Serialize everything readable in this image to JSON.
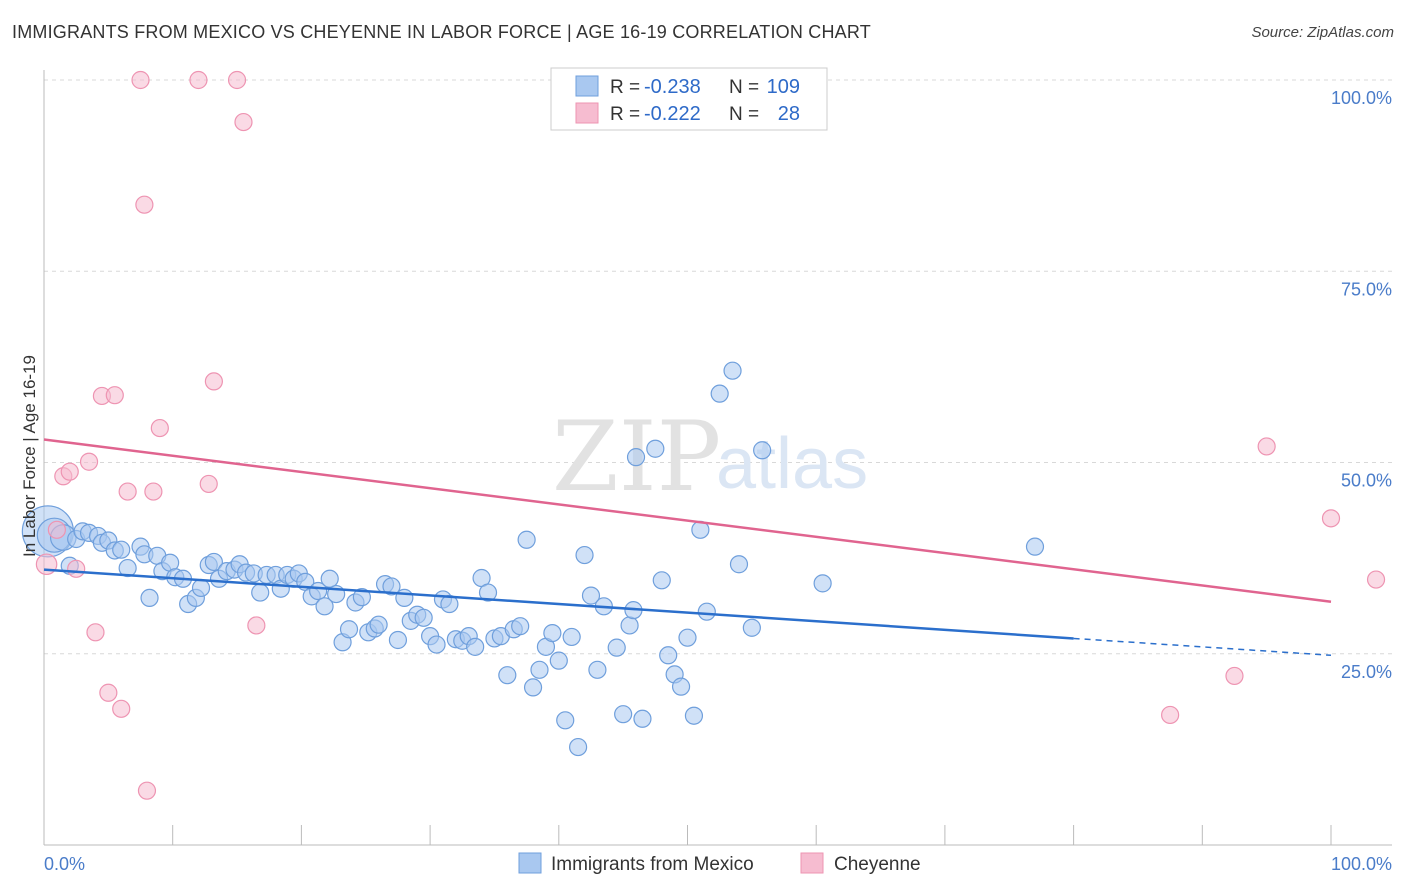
{
  "title": "IMMIGRANTS FROM MEXICO VS CHEYENNE IN LABOR FORCE | AGE 16-19 CORRELATION CHART",
  "source": "Source: ZipAtlas.com",
  "watermark": {
    "zip": "ZIP",
    "atlas": "atlas"
  },
  "colors": {
    "blue_fill": "#a9c8f0",
    "blue_stroke": "#6f9fdc",
    "blue_line": "#2b6fcc",
    "pink_fill": "#f6bcd0",
    "pink_stroke": "#ee94b2",
    "pink_line": "#e0648f",
    "grid": "#d8d8d8",
    "axis_label": "#4a7cc9"
  },
  "legend_box": {
    "rows": [
      {
        "r_label": "R =",
        "r_value": "-0.238",
        "n_label": "N =",
        "n_value": "109",
        "color": "blue"
      },
      {
        "r_label": "R =",
        "r_value": "-0.222",
        "n_label": "N =",
        "n_value": "28",
        "color": "pink"
      }
    ]
  },
  "bottom_legend": [
    {
      "label": "Immigrants from Mexico",
      "color": "blue"
    },
    {
      "label": "Cheyenne",
      "color": "pink"
    }
  ],
  "chart_data": {
    "type": "scatter",
    "title": "IMMIGRANTS FROM MEXICO VS CHEYENNE IN LABOR FORCE | AGE 16-19 CORRELATION CHART",
    "xlabel": "",
    "ylabel": "In Labor Force | Age 16-19",
    "xlim": [
      0,
      100
    ],
    "ylim": [
      0,
      100
    ],
    "x_tick_labels": [
      "0.0%",
      "100.0%"
    ],
    "y_ticks": [
      {
        "value": 25,
        "label": "25.0%"
      },
      {
        "value": 50,
        "label": "50.0%"
      },
      {
        "value": 75,
        "label": "75.0%"
      },
      {
        "value": 100,
        "label": "100.0%"
      }
    ],
    "grid": true,
    "series": [
      {
        "name": "Immigrants from Mexico",
        "color": "blue",
        "r": -0.238,
        "n": 109,
        "trend": {
          "x0": 0,
          "y0": 36.0,
          "x1": 80,
          "y1": 27.0,
          "dashed_to_x": 100,
          "dashed_to_y": 24.8
        },
        "points": [
          [
            0.3,
            41.0,
            3
          ],
          [
            0.8,
            40.5,
            2
          ],
          [
            1.5,
            40.2,
            1.5
          ],
          [
            2.0,
            36.5,
            1
          ],
          [
            2.5,
            40.0,
            1
          ],
          [
            3.0,
            41.0,
            1
          ],
          [
            3.5,
            40.8,
            1
          ],
          [
            4.2,
            40.4,
            1
          ],
          [
            4.5,
            39.5,
            1
          ],
          [
            5.0,
            39.8,
            1
          ],
          [
            5.5,
            38.5,
            1
          ],
          [
            6.0,
            38.6,
            1
          ],
          [
            6.5,
            36.2,
            1
          ],
          [
            7.5,
            39.0,
            1
          ],
          [
            7.8,
            38.0,
            1
          ],
          [
            8.2,
            32.3,
            1
          ],
          [
            8.8,
            37.8,
            1
          ],
          [
            9.2,
            35.8,
            1
          ],
          [
            9.8,
            36.9,
            1
          ],
          [
            10.2,
            35.0,
            1
          ],
          [
            10.8,
            34.8,
            1
          ],
          [
            11.2,
            31.5,
            1
          ],
          [
            11.8,
            32.3,
            1
          ],
          [
            12.2,
            33.6,
            1
          ],
          [
            12.8,
            36.6,
            1
          ],
          [
            13.2,
            37.0,
            1
          ],
          [
            13.6,
            34.8,
            1
          ],
          [
            14.2,
            35.8,
            1
          ],
          [
            14.8,
            36.0,
            1
          ],
          [
            15.2,
            36.7,
            1
          ],
          [
            15.7,
            35.6,
            1
          ],
          [
            16.3,
            35.5,
            1
          ],
          [
            16.8,
            33.0,
            1
          ],
          [
            17.3,
            35.3,
            1
          ],
          [
            18.0,
            35.3,
            1
          ],
          [
            18.4,
            33.5,
            1
          ],
          [
            18.9,
            35.3,
            1
          ],
          [
            19.4,
            34.8,
            1
          ],
          [
            19.8,
            35.5,
            1
          ],
          [
            20.3,
            34.4,
            1
          ],
          [
            20.8,
            32.5,
            1
          ],
          [
            21.3,
            33.2,
            1
          ],
          [
            21.8,
            31.2,
            1
          ],
          [
            22.2,
            34.8,
            1
          ],
          [
            22.7,
            32.8,
            1
          ],
          [
            23.2,
            26.5,
            1
          ],
          [
            23.7,
            28.2,
            1
          ],
          [
            24.2,
            31.7,
            1
          ],
          [
            24.7,
            32.4,
            1
          ],
          [
            25.2,
            27.8,
            1
          ],
          [
            25.7,
            28.3,
            1
          ],
          [
            26.0,
            28.8,
            1
          ],
          [
            26.5,
            34.1,
            1
          ],
          [
            27.0,
            33.8,
            1
          ],
          [
            27.5,
            26.8,
            1
          ],
          [
            28.0,
            32.3,
            1
          ],
          [
            28.5,
            29.3,
            1
          ],
          [
            29.0,
            30.1,
            1
          ],
          [
            29.5,
            29.7,
            1
          ],
          [
            30.0,
            27.3,
            1
          ],
          [
            30.5,
            26.2,
            1
          ],
          [
            31.0,
            32.1,
            1
          ],
          [
            31.5,
            31.5,
            1
          ],
          [
            32.0,
            26.9,
            1
          ],
          [
            32.5,
            26.7,
            1
          ],
          [
            33.0,
            27.3,
            1
          ],
          [
            33.5,
            25.9,
            1
          ],
          [
            34.0,
            34.9,
            1
          ],
          [
            34.5,
            33.0,
            1
          ],
          [
            35.0,
            27.0,
            1
          ],
          [
            35.5,
            27.3,
            1
          ],
          [
            36.0,
            22.2,
            1
          ],
          [
            36.5,
            28.2,
            1
          ],
          [
            37.0,
            28.6,
            1
          ],
          [
            37.5,
            39.9,
            1
          ],
          [
            38.0,
            20.6,
            1
          ],
          [
            38.5,
            22.9,
            1
          ],
          [
            39.0,
            25.9,
            1
          ],
          [
            39.5,
            27.7,
            1
          ],
          [
            40.0,
            24.1,
            1
          ],
          [
            40.5,
            16.3,
            1
          ],
          [
            41.0,
            27.2,
            1
          ],
          [
            41.5,
            12.8,
            1
          ],
          [
            42.0,
            37.9,
            1
          ],
          [
            42.5,
            32.6,
            1
          ],
          [
            43.0,
            22.9,
            1
          ],
          [
            43.5,
            31.2,
            1
          ],
          [
            44.5,
            25.8,
            1
          ],
          [
            45.0,
            17.1,
            1
          ],
          [
            45.5,
            28.7,
            1
          ],
          [
            45.8,
            30.7,
            1
          ],
          [
            46.0,
            50.7,
            1
          ],
          [
            46.5,
            16.5,
            1
          ],
          [
            47.5,
            51.8,
            1
          ],
          [
            48.0,
            34.6,
            1
          ],
          [
            48.5,
            24.8,
            1
          ],
          [
            49.0,
            22.3,
            1
          ],
          [
            49.5,
            20.7,
            1
          ],
          [
            50.0,
            27.1,
            1
          ],
          [
            50.5,
            16.9,
            1
          ],
          [
            51.0,
            41.2,
            1
          ],
          [
            51.5,
            30.5,
            1
          ],
          [
            52.5,
            59.0,
            1
          ],
          [
            53.5,
            62.0,
            1
          ],
          [
            54.0,
            36.7,
            1
          ],
          [
            55.0,
            28.4,
            1
          ],
          [
            55.8,
            51.6,
            1
          ],
          [
            60.5,
            34.2,
            1
          ],
          [
            77.0,
            39.0,
            1
          ]
        ]
      },
      {
        "name": "Cheyenne",
        "color": "pink",
        "r": -0.222,
        "n": 28,
        "trend": {
          "x0": 0,
          "y0": 53.0,
          "x1": 100,
          "y1": 31.8
        },
        "points": [
          [
            0.2,
            36.7,
            1.2
          ],
          [
            1.0,
            41.2,
            1
          ],
          [
            1.5,
            48.2,
            1
          ],
          [
            2.0,
            48.8,
            1
          ],
          [
            2.5,
            36.1,
            1
          ],
          [
            3.5,
            50.1,
            1
          ],
          [
            4.0,
            27.8,
            1
          ],
          [
            4.5,
            58.7,
            1
          ],
          [
            5.0,
            19.9,
            1
          ],
          [
            5.5,
            58.8,
            1
          ],
          [
            6.0,
            17.8,
            1
          ],
          [
            6.5,
            46.2,
            1
          ],
          [
            7.5,
            100,
            1
          ],
          [
            7.8,
            83.7,
            1
          ],
          [
            8.0,
            7.1,
            1
          ],
          [
            8.5,
            46.2,
            1
          ],
          [
            9.0,
            54.5,
            1
          ],
          [
            12.0,
            100,
            1
          ],
          [
            12.8,
            47.2,
            1
          ],
          [
            13.2,
            60.6,
            1
          ],
          [
            15.0,
            100,
            1
          ],
          [
            15.5,
            94.5,
            1
          ],
          [
            16.5,
            28.7,
            1
          ],
          [
            87.5,
            17.0,
            1
          ],
          [
            92.5,
            22.1,
            1
          ],
          [
            95.0,
            52.1,
            1
          ],
          [
            100.0,
            42.7,
            1
          ],
          [
            103.5,
            34.7,
            1
          ]
        ]
      }
    ]
  }
}
